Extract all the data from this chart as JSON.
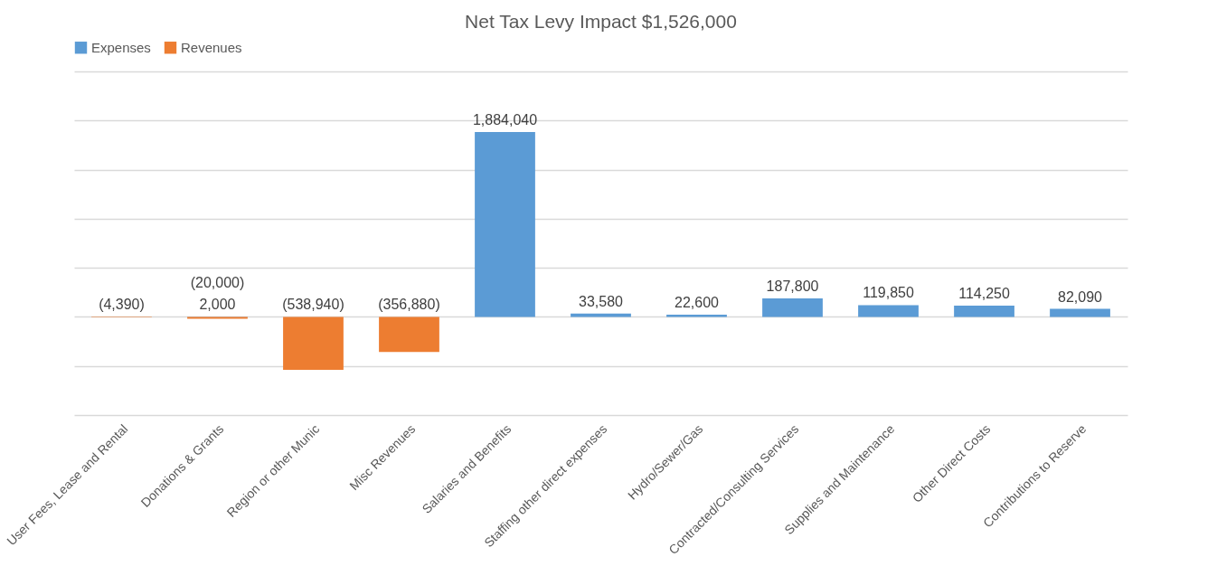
{
  "chart_data": {
    "type": "bar",
    "title": "Net Tax Levy Impact $1,526,000",
    "stacked": true,
    "categories": [
      "User Fees, Lease and Rental",
      "Donations & Grants",
      "Region or other Munic",
      "Misc Revenues",
      "Salaries and Benefits",
      "Staffing other direct expenses",
      "Hydro/Sewer/Gas",
      "Contracted/Consulting Services",
      "Supplies and Maintenance",
      "Other Direct Costs",
      "Contributions to Reserve"
    ],
    "series": [
      {
        "name": "Expenses",
        "color": "#5b9bd5",
        "values": [
          null,
          2000,
          null,
          null,
          1884040,
          33580,
          22600,
          187800,
          119850,
          114250,
          82090
        ],
        "value_labels": [
          null,
          "2,000",
          null,
          null,
          "1,884,040",
          "33,580",
          "22,600",
          "187,800",
          "119,850",
          "114,250",
          "82,090"
        ]
      },
      {
        "name": "Revenues",
        "color": "#ed7d31",
        "values": [
          -4390,
          -20000,
          -538940,
          -356880,
          null,
          null,
          null,
          null,
          null,
          null,
          null
        ],
        "value_labels": [
          "(4,390)",
          "(20,000)",
          "(538,940)",
          "(356,880)",
          null,
          null,
          null,
          null,
          null,
          null,
          null
        ]
      }
    ],
    "ylim": [
      -1000000,
      2500000
    ],
    "yticks": [
      {
        "value": -1000000,
        "label": null
      },
      {
        "value": -500000,
        "label": null
      },
      {
        "value": 0,
        "label": null
      },
      {
        "value": 500000,
        "label": null
      },
      {
        "value": 1000000,
        "label": null
      },
      {
        "value": 1500000,
        "label": null
      },
      {
        "value": 2000000,
        "label": null
      },
      {
        "value": 2500000,
        "label": null
      }
    ],
    "tick_labels": "x",
    "grid": "y",
    "legend": "top"
  }
}
